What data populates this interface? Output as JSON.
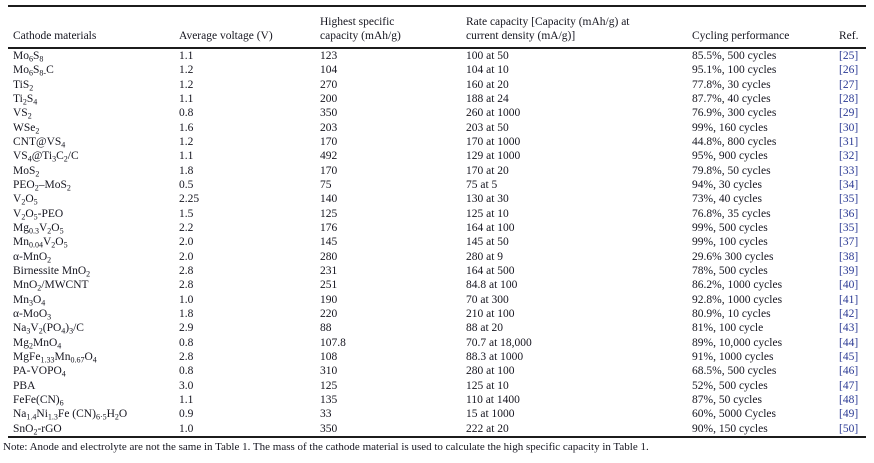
{
  "note": "Note: Anode and electrolyte are not the same in Table 1. The mass of the cathode material is used to calculate the high specific capacity in Table 1.",
  "colors": {
    "body_text": "#15151f",
    "rule": "#1c1c1c",
    "ref_link": "#2b3a94"
  },
  "table": {
    "columns": [
      {
        "id": "material",
        "lines": [
          "Cathode materials"
        ]
      },
      {
        "id": "voltage",
        "lines": [
          "Average voltage (V)"
        ]
      },
      {
        "id": "capacity",
        "lines": [
          "Highest specific",
          "capacity (mAh/g)"
        ]
      },
      {
        "id": "rate",
        "lines": [
          "Rate capacity [Capacity (mAh/g) at",
          "current density (mA/g)]"
        ]
      },
      {
        "id": "cycling",
        "lines": [
          "Cycling performance"
        ]
      },
      {
        "id": "ref",
        "lines": [
          "Ref."
        ]
      }
    ],
    "rows": [
      {
        "material": "Mo~6~S~8~",
        "voltage": "1.1",
        "capacity": "123",
        "rate": "100 at 50",
        "cycling": "85.5%, 500 cycles",
        "ref": "[25]"
      },
      {
        "material": "Mo~6~S~8~~-~C",
        "voltage": "1.2",
        "capacity": "104",
        "rate": "104 at 10",
        "cycling": "95.1%, 100 cycles",
        "ref": "[26]"
      },
      {
        "material": "TiS~2~",
        "voltage": "1.2",
        "capacity": "270",
        "rate": "160 at 20",
        "cycling": "77.8%, 30 cycles",
        "ref": "[27]"
      },
      {
        "material": "Ti~2~S~4~",
        "voltage": "1.1",
        "capacity": "200",
        "rate": "188 at 24",
        "cycling": "87.7%, 40 cycles",
        "ref": "[28]"
      },
      {
        "material": "VS~2~",
        "voltage": "0.8",
        "capacity": "350",
        "rate": "260 at 1000",
        "cycling": "76.9%, 300 cycles",
        "ref": "[29]"
      },
      {
        "material": "WSe~2~",
        "voltage": "1.6",
        "capacity": "203",
        "rate": "203 at 50",
        "cycling": "99%, 160 cycles",
        "ref": "[30]"
      },
      {
        "material": "CNT@VS~4~",
        "voltage": "1.2",
        "capacity": "170",
        "rate": "170 at 1000",
        "cycling": "44.8%, 800 cycles",
        "ref": "[31]"
      },
      {
        "material": "VS~4~@Ti~3~C~2~/C",
        "voltage": "1.1",
        "capacity": "492",
        "rate": "129 at 1000",
        "cycling": "95%, 900 cycles",
        "ref": "[32]"
      },
      {
        "material": "MoS~2~",
        "voltage": "1.8",
        "capacity": "170",
        "rate": "170 at 20",
        "cycling": "79.8%, 50 cycles",
        "ref": "[33]"
      },
      {
        "material": "PEO~2~–MoS~2~",
        "voltage": "0.5",
        "capacity": "75",
        "rate": "75 at 5",
        "cycling": "94%, 30 cycles",
        "ref": "[34]"
      },
      {
        "material": "V~2~O~5~",
        "voltage": "2.25",
        "capacity": "140",
        "rate": "130 at 30",
        "cycling": "73%, 40 cycles",
        "ref": "[35]"
      },
      {
        "material": "V~2~O~5~-PEO",
        "voltage": "1.5",
        "capacity": "125",
        "rate": "125 at 10",
        "cycling": "76.8%, 35 cycles",
        "ref": "[36]"
      },
      {
        "material": "Mg~0.3~V~2~O~5~",
        "voltage": "2.2",
        "capacity": "176",
        "rate": "164 at 100",
        "cycling": "99%, 500 cycles",
        "ref": "[35]"
      },
      {
        "material": "Mn~0.04~V~2~O~5~",
        "voltage": "2.0",
        "capacity": "145",
        "rate": "145 at 50",
        "cycling": "99%, 100 cycles",
        "ref": "[37]"
      },
      {
        "material": "α-MnO~2~",
        "voltage": "2.0",
        "capacity": "280",
        "rate": "280 at 9",
        "cycling": "29.6% 300 cycles",
        "ref": "[38]"
      },
      {
        "material": "Birnessite MnO~2~",
        "voltage": "2.8",
        "capacity": "231",
        "rate": "164 at 500",
        "cycling": "78%, 500 cycles",
        "ref": "[39]"
      },
      {
        "material": "MnO~2~/MWCNT",
        "voltage": "2.8",
        "capacity": "251",
        "rate": "84.8 at 100",
        "cycling": "86.2%, 1000 cycles",
        "ref": "[40]"
      },
      {
        "material": "Mn~3~O~4~",
        "voltage": "1.0",
        "capacity": "190",
        "rate": "70 at 300",
        "cycling": "92.8%, 1000 cycles",
        "ref": "[41]"
      },
      {
        "material": "α-MoO~3~",
        "voltage": "1.8",
        "capacity": "220",
        "rate": "210 at 100",
        "cycling": "80.9%, 10 cycles",
        "ref": "[42]"
      },
      {
        "material": "Na~3~V~2~(PO~4~)~3~/C",
        "voltage": "2.9",
        "capacity": "88",
        "rate": "88 at 20",
        "cycling": "81%, 100 cycle",
        "ref": "[43]"
      },
      {
        "material": "Mg~2~MnO~4~",
        "voltage": "0.8",
        "capacity": "107.8",
        "rate": "70.7 at 18,000",
        "cycling": "89%, 10,000 cycles",
        "ref": "[44]"
      },
      {
        "material": "MgFe~1.33~Mn~0.67~O~4~",
        "voltage": "2.8",
        "capacity": "108",
        "rate": "88.3 at 1000",
        "cycling": "91%, 1000 cycles",
        "ref": "[45]"
      },
      {
        "material": "PA-VOPO~4~",
        "voltage": "0.8",
        "capacity": "310",
        "rate": "280 at 100",
        "cycling": "68.5%, 500 cycles",
        "ref": "[46]"
      },
      {
        "material": "PBA",
        "voltage": "3.0",
        "capacity": "125",
        "rate": "125 at 10",
        "cycling": "52%, 500 cycles",
        "ref": "[47]"
      },
      {
        "material": "FeFe(CN)~6~",
        "voltage": "1.1",
        "capacity": "135",
        "rate": "110 at 1400",
        "cycling": "87%, 50 cycles",
        "ref": "[48]"
      },
      {
        "material": "Na~1.4~Ni~1.3~Fe (CN)~6·5~H~2~O",
        "voltage": "0.9",
        "capacity": "33",
        "rate": "15 at 1000",
        "cycling": "60%, 5000 Cycles",
        "ref": "[49]"
      },
      {
        "material": "SnO~2~-rGO",
        "voltage": "1.0",
        "capacity": "350",
        "rate": "222 at 20",
        "cycling": "90%, 150 cycles",
        "ref": "[50]"
      }
    ]
  }
}
